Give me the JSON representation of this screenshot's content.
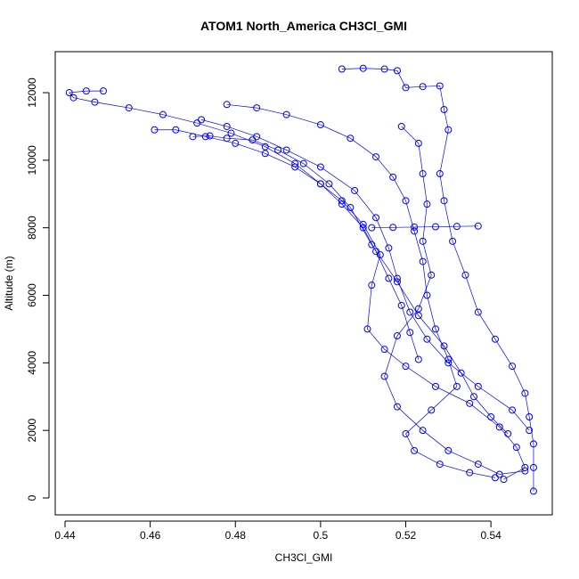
{
  "chart_data": {
    "type": "scatter",
    "title": "ATOM1 North_America CH3Cl_GMI",
    "x_label": "CH3Cl_GMI",
    "y_label": "Altitude (m)",
    "xlim": [
      0.4377,
      0.5544
    ],
    "ylim": [
      -501,
      13214
    ],
    "xticks": [
      0.44,
      0.46,
      0.48,
      0.5,
      0.52,
      0.54
    ],
    "yticks": [
      0,
      2000,
      4000,
      6000,
      8000,
      10000,
      12000
    ],
    "color": "#0000ff",
    "series": [
      {
        "x": [
          0.449,
          0.445,
          0.441,
          0.442,
          0.447,
          0.455,
          0.463,
          0.471,
          0.479,
          0.487,
          0.494,
          0.5,
          0.505,
          0.51,
          0.513,
          0.516,
          0.519,
          0.521,
          0.523
        ],
        "y": [
          12050,
          12050,
          12000,
          11850,
          11720,
          11550,
          11350,
          11100,
          10800,
          10400,
          9900,
          9300,
          8700,
          8000,
          7300,
          6500,
          5700,
          4900,
          4100
        ]
      },
      {
        "x": [
          0.505,
          0.51,
          0.515,
          0.518,
          0.52,
          0.524,
          0.528,
          0.529,
          0.53,
          0.528,
          0.529,
          0.531,
          0.534,
          0.537,
          0.541,
          0.545,
          0.548,
          0.549,
          0.55,
          0.55,
          0.55
        ],
        "y": [
          12700,
          12720,
          12700,
          12650,
          12150,
          12180,
          12200,
          11500,
          10900,
          9600,
          8800,
          7600,
          6600,
          5500,
          4700,
          3900,
          3100,
          2400,
          1600,
          900,
          200
        ]
      },
      {
        "x": [
          0.461,
          0.466,
          0.473,
          0.48,
          0.487,
          0.494,
          0.5,
          0.505,
          0.51,
          0.514,
          0.512,
          0.511,
          0.515,
          0.52,
          0.527,
          0.535,
          0.542,
          0.546,
          0.548,
          0.543
        ],
        "y": [
          10900,
          10900,
          10700,
          10500,
          10200,
          9800,
          9300,
          8800,
          8100,
          7200,
          6300,
          5000,
          4400,
          3900,
          3300,
          2800,
          2100,
          1500,
          900,
          550
        ]
      },
      {
        "x": [
          0.512,
          0.517,
          0.522,
          0.527,
          0.532,
          0.537
        ],
        "y": [
          8000,
          8010,
          8020,
          8030,
          8040,
          8050
        ]
      },
      {
        "x": [
          0.478,
          0.485,
          0.492,
          0.5,
          0.507,
          0.513,
          0.517,
          0.52,
          0.522,
          0.524,
          0.525,
          0.527,
          0.53,
          0.532,
          0.526,
          0.52,
          0.522,
          0.528,
          0.535,
          0.541
        ],
        "y": [
          11650,
          11550,
          11350,
          11050,
          10650,
          10100,
          9500,
          8800,
          7900,
          7000,
          6000,
          5000,
          4100,
          3300,
          2600,
          1900,
          1400,
          1000,
          750,
          600
        ]
      },
      {
        "x": [
          0.47,
          0.474,
          0.478,
          0.484,
          0.49,
          0.496,
          0.502,
          0.507,
          0.512,
          0.518,
          0.523,
          0.529,
          0.533,
          0.536,
          0.54,
          0.544
        ],
        "y": [
          10700,
          10720,
          10650,
          10600,
          10300,
          9900,
          9300,
          8600,
          7500,
          6400,
          5400,
          4500,
          3700,
          3000,
          2400,
          1900
        ]
      },
      {
        "x": [
          0.472,
          0.478,
          0.485,
          0.492,
          0.5,
          0.508,
          0.513,
          0.516,
          0.518,
          0.521,
          0.525,
          0.53,
          0.537,
          0.545,
          0.549
        ],
        "y": [
          11200,
          11000,
          10700,
          10300,
          9800,
          9100,
          8300,
          7400,
          6500,
          5500,
          4700,
          4000,
          3300,
          2600,
          2000
        ]
      },
      {
        "x": [
          0.519,
          0.523,
          0.524,
          0.525,
          0.524,
          0.526,
          0.523,
          0.518,
          0.515,
          0.518,
          0.524,
          0.53,
          0.537,
          0.542,
          0.548
        ],
        "y": [
          11000,
          10500,
          9600,
          8700,
          7600,
          6600,
          5600,
          4800,
          3600,
          2700,
          2000,
          1400,
          1000,
          700,
          800
        ]
      }
    ]
  }
}
